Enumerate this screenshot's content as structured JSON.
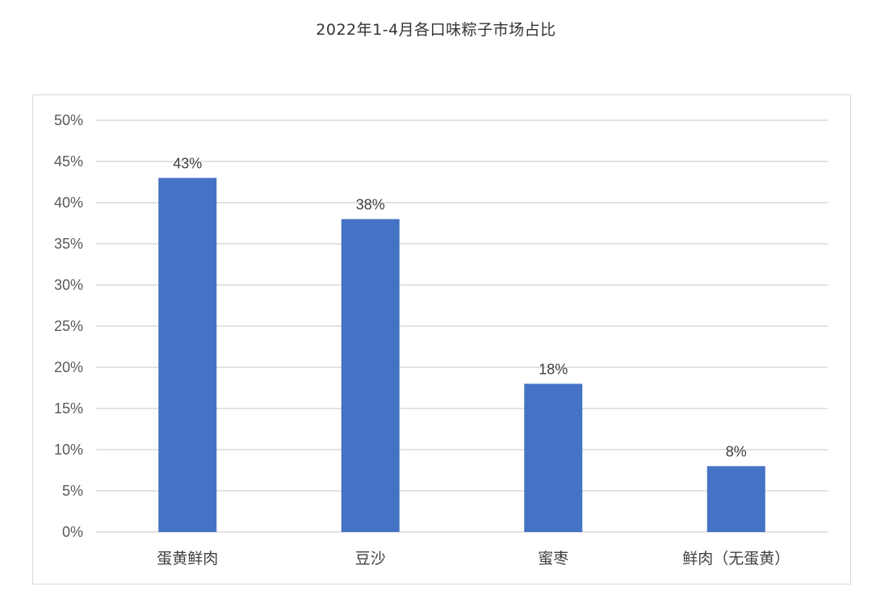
{
  "chart_data": {
    "type": "bar",
    "title": "2022年1-4月各口味粽子市场占比",
    "categories": [
      "蛋黄鲜肉",
      "豆沙",
      "蜜枣",
      "鲜肉（无蛋黄）"
    ],
    "values": [
      43,
      38,
      18,
      8
    ],
    "value_labels": [
      "43%",
      "38%",
      "18%",
      "8%"
    ],
    "ylim": [
      0,
      50
    ],
    "y_ticks": [
      0,
      5,
      10,
      15,
      20,
      25,
      30,
      35,
      40,
      45,
      50
    ],
    "y_tick_labels": [
      "0%",
      "5%",
      "10%",
      "15%",
      "20%",
      "25%",
      "30%",
      "35%",
      "40%",
      "45%",
      "50%"
    ],
    "xlabel": "",
    "ylabel": "",
    "grid": true,
    "legend": "none",
    "bar_color": "#4472c4",
    "grid_color": "#d9d9d9"
  }
}
